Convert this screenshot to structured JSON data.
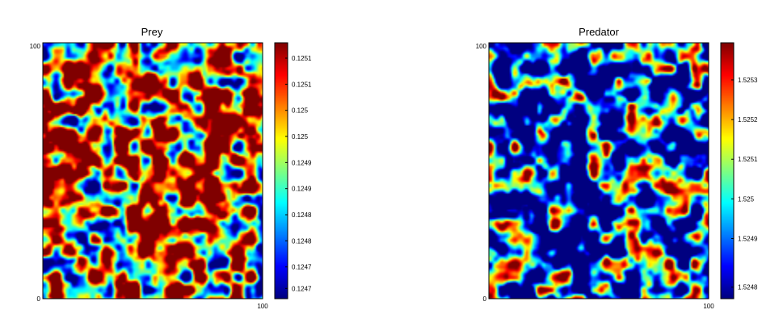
{
  "chart_data": [
    {
      "type": "heatmap",
      "title": "Prey",
      "xlim": [
        0,
        100
      ],
      "ylim": [
        0,
        100
      ],
      "x_tick_labels": [
        "100"
      ],
      "y_tick_labels": [
        "0",
        "100"
      ],
      "colormap": "jet",
      "colorbar": {
        "range": [
          0.12466,
          0.12513
        ],
        "tick_labels": [
          "0.1251",
          "0.1251",
          "0.125",
          "0.125",
          "0.1249",
          "0.1249",
          "0.1248",
          "0.1248",
          "0.1247",
          "0.1247"
        ],
        "tick_fractions": [
          0.94,
          0.838,
          0.736,
          0.634,
          0.532,
          0.43,
          0.328,
          0.226,
          0.124,
          0.04
        ]
      },
      "field": {
        "seed": 11,
        "bias": 0.25,
        "gain": 1.25,
        "frequency": 17
      }
    },
    {
      "type": "heatmap",
      "title": "Predator",
      "xlim": [
        0,
        100
      ],
      "ylim": [
        0,
        100
      ],
      "x_tick_labels": [
        "100"
      ],
      "y_tick_labels": [
        "0",
        "100"
      ],
      "colormap": "jet",
      "colorbar": {
        "range": [
          1.52475,
          1.52539
        ],
        "tick_labels": [
          "1.5253",
          "1.5252",
          "1.5251",
          "1.525",
          "1.5249",
          "1.5248"
        ],
        "tick_fractions": [
          0.855,
          0.7,
          0.545,
          0.39,
          0.235,
          0.045
        ]
      },
      "field": {
        "seed": 47,
        "bias": -0.28,
        "gain": 1.25,
        "frequency": 17
      }
    }
  ]
}
